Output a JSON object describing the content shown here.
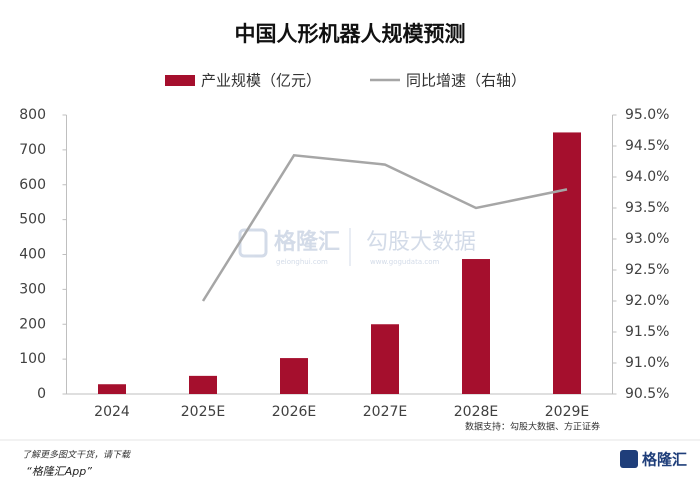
{
  "chart_data": {
    "type": "bar_line",
    "title": "中国人形机器人规模预测",
    "categories": [
      "2024",
      "2025E",
      "2026E",
      "2027E",
      "2028E",
      "2029E"
    ],
    "series": [
      {
        "name": "产业规模（亿元）",
        "type": "bar",
        "color": "#a50f2d",
        "values": [
          28,
          52,
          103,
          200,
          387,
          750
        ]
      },
      {
        "name": "同比增速（右轴）",
        "type": "line",
        "axis": "y2",
        "color": "#a6a6a6",
        "values": [
          null,
          92.0,
          94.35,
          94.2,
          93.5,
          93.8
        ]
      }
    ],
    "ylim": [
      0,
      800
    ],
    "yticks": [
      0,
      100,
      200,
      300,
      400,
      500,
      600,
      700,
      800
    ],
    "y2lim": [
      90.5,
      95.0
    ],
    "y2ticks": [
      {
        "value": 90.5,
        "label": "90.5%"
      },
      {
        "value": 91.0,
        "label": "91.0%"
      },
      {
        "value": 91.5,
        "label": "91.5%"
      },
      {
        "value": 92.0,
        "label": "92.0%"
      },
      {
        "value": 92.5,
        "label": "92.5%"
      },
      {
        "value": 93.0,
        "label": "93.0%"
      },
      {
        "value": 93.5,
        "label": "93.5%"
      },
      {
        "value": 94.0,
        "label": "94.0%"
      },
      {
        "value": 94.5,
        "label": "94.5%"
      },
      {
        "value": 95.0,
        "label": "95.0%"
      }
    ],
    "source": "数据支持：勾股大数据、方正证券"
  },
  "watermark": {
    "brand": "格隆汇",
    "brand_url": "gelonghui.com",
    "partner": "勾股大数据",
    "partner_url": "www.gogudata.com"
  },
  "footer": {
    "line1": "了解更多图文干货，请下载",
    "line2": "“格隆汇App”",
    "logo": "格隆汇"
  }
}
